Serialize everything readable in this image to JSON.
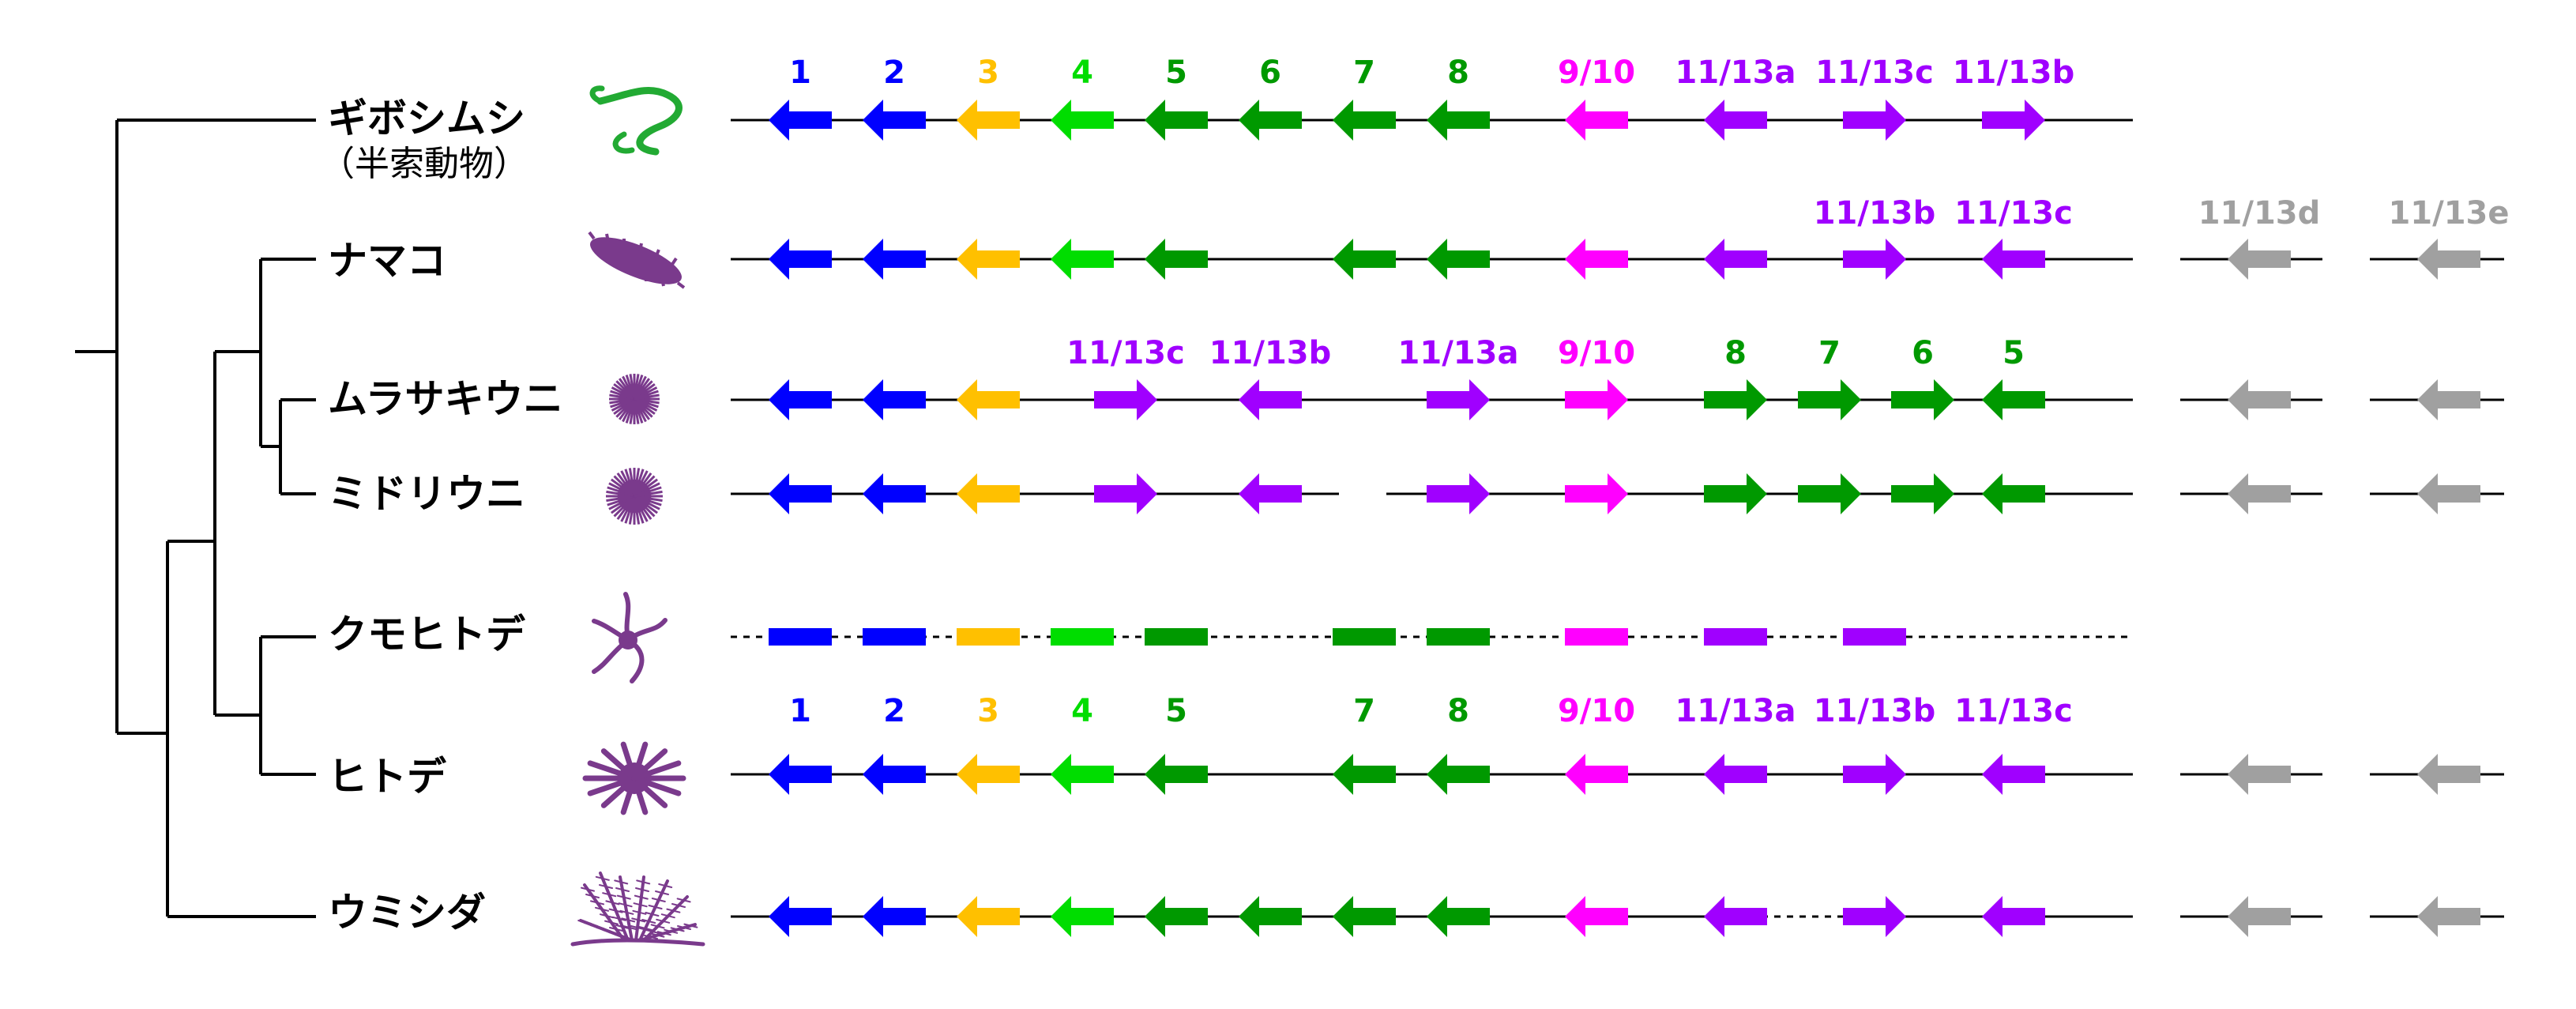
{
  "colors": {
    "blue": "#0000ff",
    "yellow": "#ffc000",
    "lightgreen": "#00dd00",
    "green": "#009900",
    "pink": "#ff00ff",
    "purple": "#a000ff",
    "gray": "#a0a0a0",
    "tree": "#000000",
    "animal_green": "#22aa33",
    "animal_purple": "#7a3a8c"
  },
  "species": [
    {
      "id": "acorn-worm",
      "name": "ギボシムシ",
      "subtitle": "（半索動物）",
      "icon": "acorn-worm-icon"
    },
    {
      "id": "sea-cucumber",
      "name": "ナマコ",
      "icon": "sea-cucumber-icon"
    },
    {
      "id": "purple-sea-urchin",
      "name": "ムラサキウニ",
      "icon": "sea-urchin-icon"
    },
    {
      "id": "green-sea-urchin",
      "name": "ミドリウニ",
      "icon": "sea-urchin-icon"
    },
    {
      "id": "brittle-star",
      "name": "クモヒトデ",
      "icon": "brittle-star-icon"
    },
    {
      "id": "starfish",
      "name": "ヒトデ",
      "icon": "starfish-icon"
    },
    {
      "id": "feather-star",
      "name": "ウミシダ",
      "icon": "feather-star-icon"
    }
  ],
  "label_rows": [
    {
      "labels": [
        {
          "text": "1",
          "color": "blue"
        },
        {
          "text": "2",
          "color": "blue"
        },
        {
          "text": "3",
          "color": "yellow"
        },
        {
          "text": "4",
          "color": "lightgreen"
        },
        {
          "text": "5",
          "color": "green"
        },
        {
          "text": "6",
          "color": "green"
        },
        {
          "text": "7",
          "color": "green"
        },
        {
          "text": "8",
          "color": "green"
        },
        {
          "text": "9/10",
          "color": "pink"
        },
        {
          "text": "11/13a",
          "color": "purple"
        },
        {
          "text": "11/13c",
          "color": "purple"
        },
        {
          "text": "11/13b",
          "color": "purple"
        }
      ]
    },
    {
      "labels": [
        {
          "text": "11/13b",
          "color": "purple"
        },
        {
          "text": "11/13c",
          "color": "purple"
        },
        {
          "text": "11/13d",
          "color": "gray"
        },
        {
          "text": "11/13e",
          "color": "gray"
        }
      ]
    },
    {
      "labels": [
        {
          "text": "11/13c",
          "color": "purple"
        },
        {
          "text": "11/13b",
          "color": "purple"
        },
        {
          "text": "11/13a",
          "color": "purple"
        },
        {
          "text": "9/10",
          "color": "pink"
        },
        {
          "text": "8",
          "color": "green"
        },
        {
          "text": "7",
          "color": "green"
        },
        {
          "text": "6",
          "color": "green"
        },
        {
          "text": "5",
          "color": "green"
        }
      ]
    },
    {
      "labels": [
        {
          "text": "1",
          "color": "blue"
        },
        {
          "text": "2",
          "color": "blue"
        },
        {
          "text": "3",
          "color": "yellow"
        },
        {
          "text": "4",
          "color": "lightgreen"
        },
        {
          "text": "5",
          "color": "green"
        },
        {
          "text": "7",
          "color": "green"
        },
        {
          "text": "8",
          "color": "green"
        },
        {
          "text": "9/10",
          "color": "pink"
        },
        {
          "text": "11/13a",
          "color": "purple"
        },
        {
          "text": "11/13b",
          "color": "purple"
        },
        {
          "text": "11/13c",
          "color": "purple"
        }
      ]
    }
  ],
  "gene_rows": [
    {
      "genes": [
        {
          "color": "blue",
          "dir": "left"
        },
        {
          "color": "blue",
          "dir": "left"
        },
        {
          "color": "yellow",
          "dir": "left"
        },
        {
          "color": "lightgreen",
          "dir": "left"
        },
        {
          "color": "green",
          "dir": "left"
        },
        {
          "color": "green",
          "dir": "left"
        },
        {
          "color": "green",
          "dir": "left"
        },
        {
          "color": "green",
          "dir": "left"
        },
        {
          "color": "pink",
          "dir": "left"
        },
        {
          "color": "purple",
          "dir": "left"
        },
        {
          "color": "purple",
          "dir": "right"
        },
        {
          "color": "purple",
          "dir": "right"
        }
      ]
    },
    {
      "genes": [
        {
          "color": "blue",
          "dir": "left"
        },
        {
          "color": "blue",
          "dir": "left"
        },
        {
          "color": "yellow",
          "dir": "left"
        },
        {
          "color": "lightgreen",
          "dir": "left"
        },
        {
          "color": "green",
          "dir": "left"
        },
        {
          "color": "green",
          "dir": "left"
        },
        {
          "color": "green",
          "dir": "left"
        },
        {
          "color": "pink",
          "dir": "left"
        },
        {
          "color": "purple",
          "dir": "left"
        },
        {
          "color": "purple",
          "dir": "right"
        },
        {
          "color": "purple",
          "dir": "left"
        },
        {
          "color": "gray",
          "dir": "left"
        },
        {
          "color": "gray",
          "dir": "left"
        }
      ]
    },
    {
      "genes": [
        {
          "color": "blue",
          "dir": "left"
        },
        {
          "color": "blue",
          "dir": "left"
        },
        {
          "color": "yellow",
          "dir": "left"
        },
        {
          "color": "purple",
          "dir": "right"
        },
        {
          "color": "purple",
          "dir": "left"
        },
        {
          "color": "purple",
          "dir": "right"
        },
        {
          "color": "pink",
          "dir": "right"
        },
        {
          "color": "green",
          "dir": "right"
        },
        {
          "color": "green",
          "dir": "right"
        },
        {
          "color": "green",
          "dir": "right"
        },
        {
          "color": "green",
          "dir": "left"
        },
        {
          "color": "gray",
          "dir": "left"
        },
        {
          "color": "gray",
          "dir": "left"
        }
      ]
    },
    {
      "genes": [
        {
          "color": "blue",
          "dir": "left"
        },
        {
          "color": "blue",
          "dir": "left"
        },
        {
          "color": "yellow",
          "dir": "left"
        },
        {
          "color": "purple",
          "dir": "right"
        },
        {
          "color": "purple",
          "dir": "left"
        },
        {
          "color": "purple",
          "dir": "right"
        },
        {
          "color": "pink",
          "dir": "right"
        },
        {
          "color": "green",
          "dir": "right"
        },
        {
          "color": "green",
          "dir": "right"
        },
        {
          "color": "green",
          "dir": "right"
        },
        {
          "color": "green",
          "dir": "left"
        },
        {
          "color": "gray",
          "dir": "left"
        },
        {
          "color": "gray",
          "dir": "left"
        }
      ]
    },
    {
      "genes": [
        {
          "color": "blue",
          "dir": "none"
        },
        {
          "color": "blue",
          "dir": "none"
        },
        {
          "color": "yellow",
          "dir": "none"
        },
        {
          "color": "lightgreen",
          "dir": "none"
        },
        {
          "color": "green",
          "dir": "none"
        },
        {
          "color": "green",
          "dir": "none"
        },
        {
          "color": "green",
          "dir": "none"
        },
        {
          "color": "pink",
          "dir": "none"
        },
        {
          "color": "purple",
          "dir": "none"
        },
        {
          "color": "purple",
          "dir": "none"
        }
      ]
    },
    {
      "genes": [
        {
          "color": "blue",
          "dir": "left"
        },
        {
          "color": "blue",
          "dir": "left"
        },
        {
          "color": "yellow",
          "dir": "left"
        },
        {
          "color": "lightgreen",
          "dir": "left"
        },
        {
          "color": "green",
          "dir": "left"
        },
        {
          "color": "green",
          "dir": "left"
        },
        {
          "color": "green",
          "dir": "left"
        },
        {
          "color": "pink",
          "dir": "left"
        },
        {
          "color": "purple",
          "dir": "left"
        },
        {
          "color": "purple",
          "dir": "right"
        },
        {
          "color": "purple",
          "dir": "left"
        },
        {
          "color": "gray",
          "dir": "left"
        },
        {
          "color": "gray",
          "dir": "left"
        }
      ]
    },
    {
      "genes": [
        {
          "color": "blue",
          "dir": "left"
        },
        {
          "color": "blue",
          "dir": "left"
        },
        {
          "color": "yellow",
          "dir": "left"
        },
        {
          "color": "lightgreen",
          "dir": "left"
        },
        {
          "color": "green",
          "dir": "left"
        },
        {
          "color": "green",
          "dir": "left"
        },
        {
          "color": "green",
          "dir": "left"
        },
        {
          "color": "green",
          "dir": "left"
        },
        {
          "color": "pink",
          "dir": "left"
        },
        {
          "color": "purple",
          "dir": "left"
        },
        {
          "color": "purple",
          "dir": "right"
        },
        {
          "color": "purple",
          "dir": "left"
        },
        {
          "color": "gray",
          "dir": "left"
        },
        {
          "color": "gray",
          "dir": "left"
        }
      ]
    }
  ]
}
